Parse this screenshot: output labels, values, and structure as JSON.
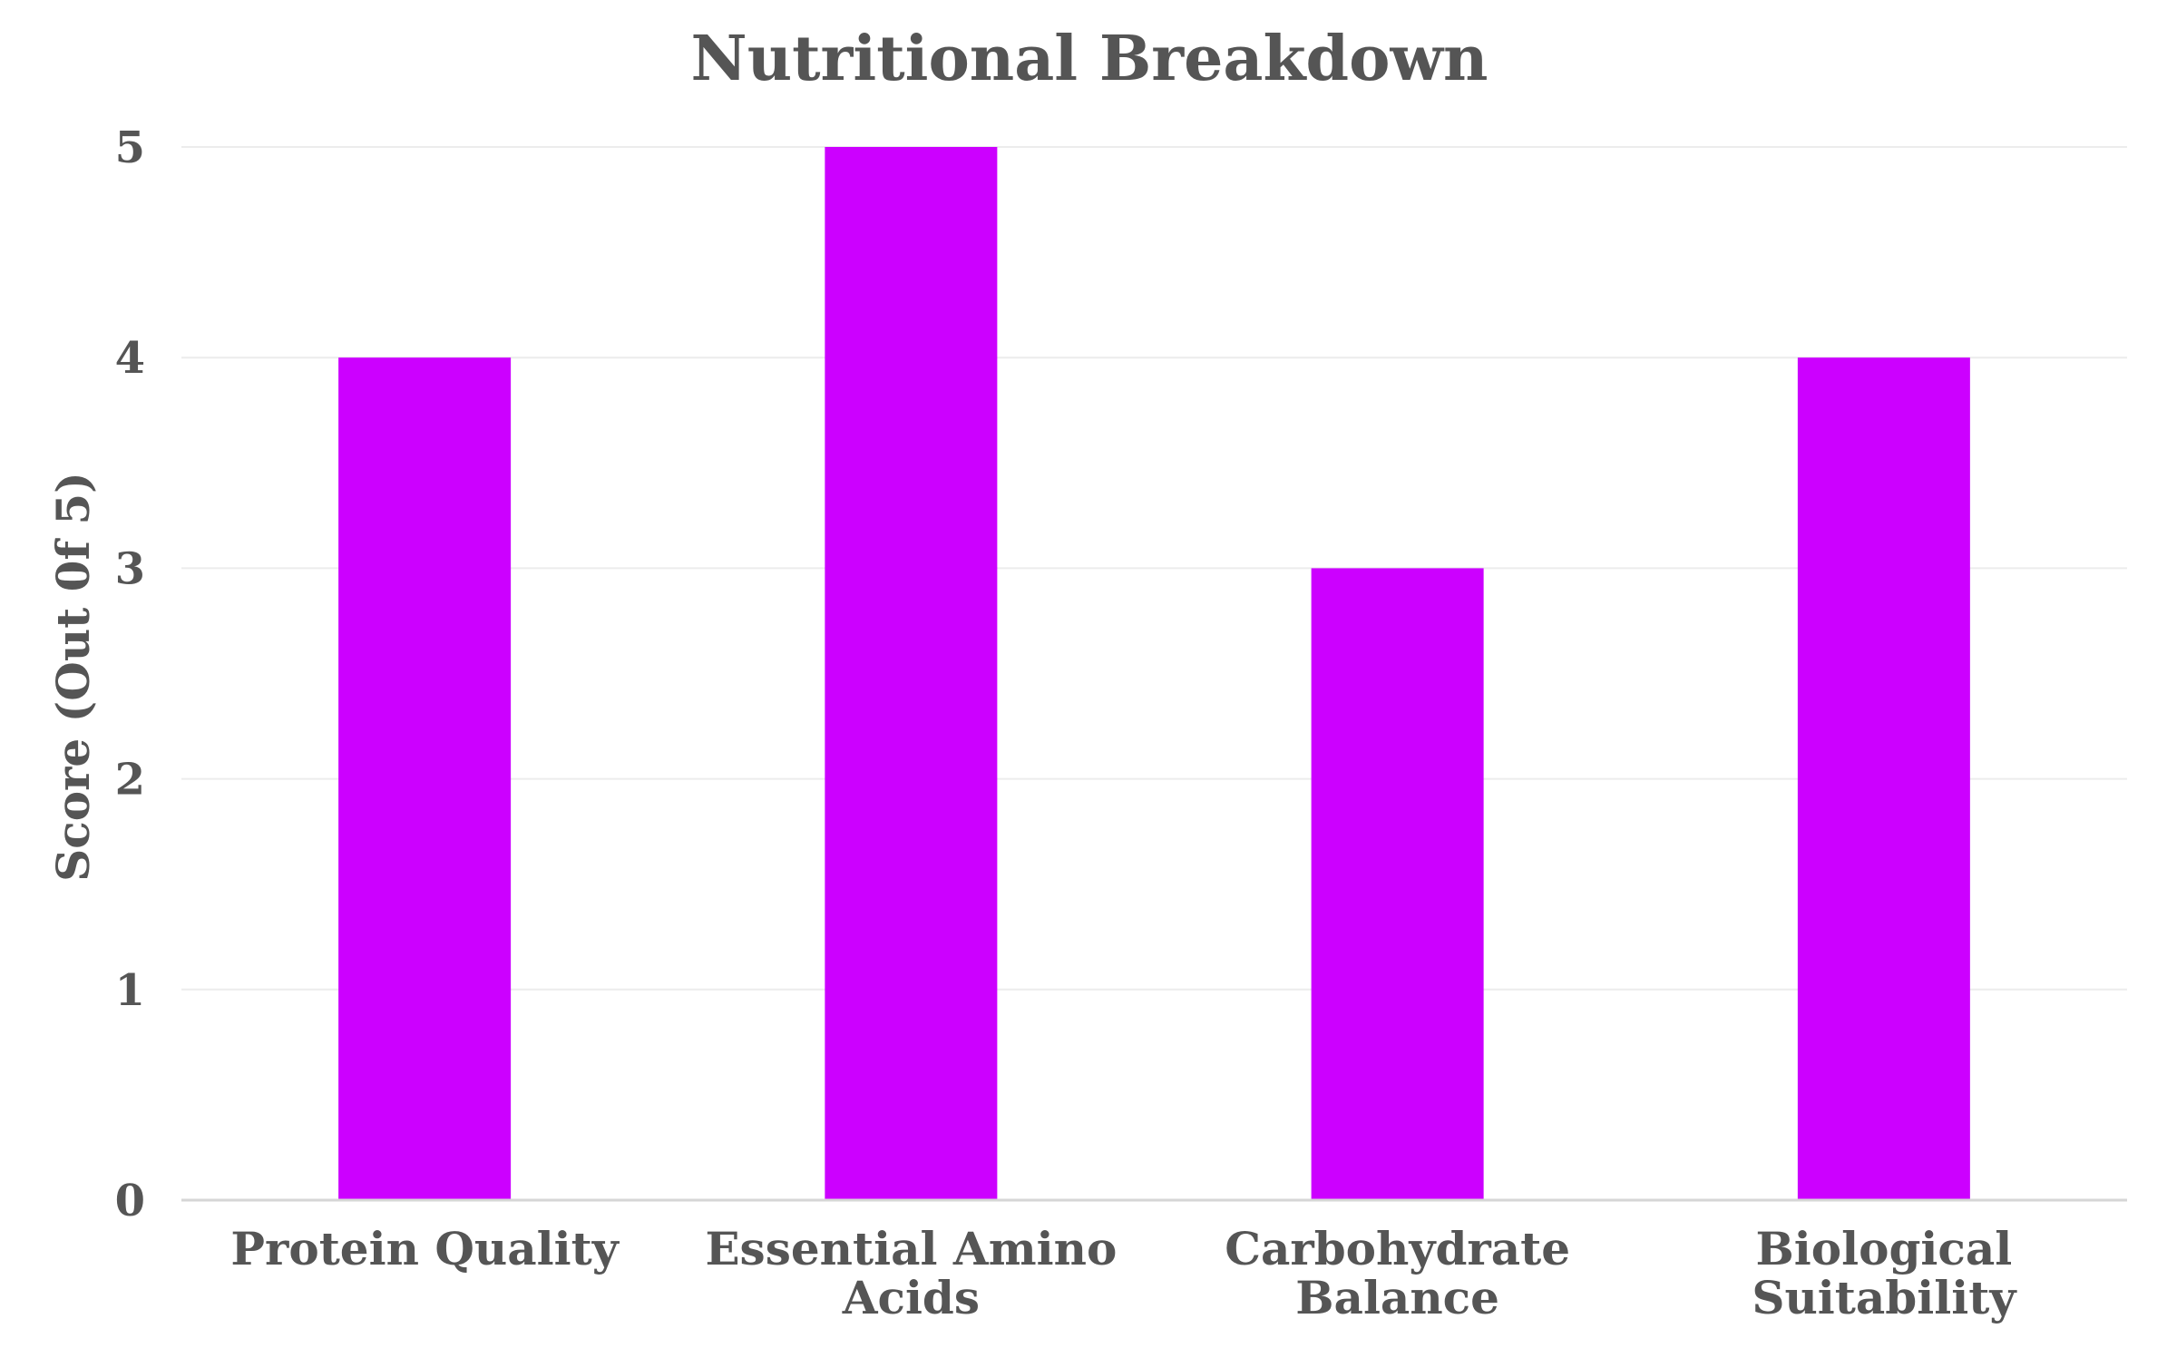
{
  "chart_data": {
    "type": "bar",
    "title": "Nutritional Breakdown",
    "xlabel": "",
    "ylabel": "Score (Out 0f 5)",
    "categories": [
      [
        "Protein Quality"
      ],
      [
        "Essential Amino",
        "Acids"
      ],
      [
        "Carbohydrate",
        "Balance"
      ],
      [
        "Biological",
        "Suitability"
      ]
    ],
    "values": [
      4,
      5,
      3,
      4
    ],
    "ylim": [
      0,
      5
    ],
    "yticks": [
      "0",
      "1",
      "2",
      "3",
      "4",
      "5"
    ],
    "grid": true,
    "legend": "none",
    "colors": {
      "bar": "#cc00ff",
      "text": "#555555",
      "grid": "#ececec",
      "axis": "#d6d6d6"
    }
  }
}
